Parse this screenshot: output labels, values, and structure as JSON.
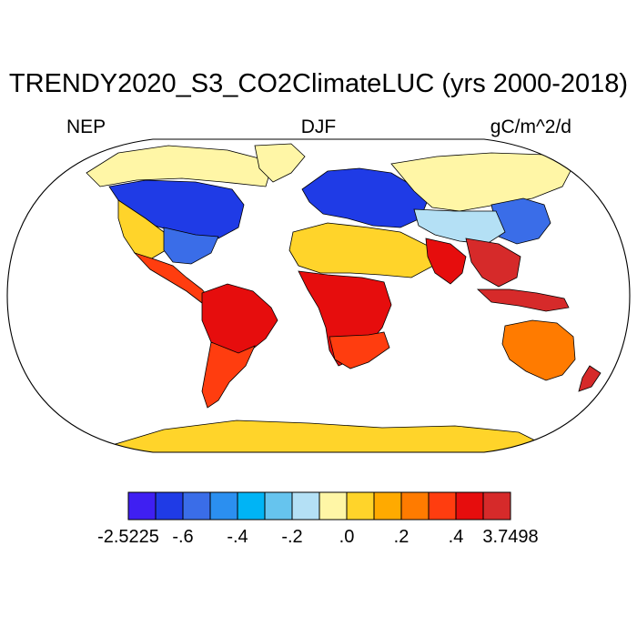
{
  "title": "TRENDY2020_S3_CO2ClimateLUC (yrs 2000-2018)",
  "left_subtitle": "NEP",
  "center_subtitle": "DJF",
  "right_subtitle": "gC/m^2/d",
  "map": {
    "projection": "robinson",
    "colors": {
      "ocean": "#ffffff",
      "coastline": "#000000",
      "map_border": "#000000"
    },
    "regions": [
      {
        "name": "North America – boreal/temperate",
        "sign": "negative",
        "class": 1
      },
      {
        "name": "Canadian Arctic",
        "sign": "near-zero",
        "class": 7
      },
      {
        "name": "Western US",
        "sign": "near-zero",
        "class": 8
      },
      {
        "name": "Mexico / Central America",
        "sign": "positive",
        "class": 11
      },
      {
        "name": "Amazon / South America",
        "sign": "positive",
        "class": 12
      },
      {
        "name": "Europe / Western Russia",
        "sign": "negative",
        "class": 1
      },
      {
        "name": "Siberia",
        "sign": "near-zero",
        "class": 7
      },
      {
        "name": "Sahara / Arabia",
        "sign": "near-zero",
        "class": 8
      },
      {
        "name": "Central and Southern Africa",
        "sign": "positive",
        "class": 12
      },
      {
        "name": "South and Southeast Asia",
        "sign": "positive",
        "class": 13
      },
      {
        "name": "Australia",
        "sign": "positive",
        "class": 10
      },
      {
        "name": "Antarctica",
        "sign": "near-zero",
        "class": 8
      }
    ]
  },
  "colorbar": {
    "colors": [
      "#3f1ff2",
      "#1f3be6",
      "#3a6de8",
      "#2b8ff0",
      "#00b4f5",
      "#66c4ee",
      "#b4e0f5",
      "#fff6a6",
      "#ffd42a",
      "#ffaa00",
      "#ff7b00",
      "#ff3d0f",
      "#e60d0d",
      "#d62a2a"
    ],
    "tick_labels": [
      "-2.5225",
      "-.6",
      "-.4",
      "-.2",
      ".0",
      ".2",
      ".4",
      "3.7498"
    ],
    "tick_boundaries": [
      0,
      2,
      4,
      6,
      8,
      10,
      12,
      14
    ]
  }
}
